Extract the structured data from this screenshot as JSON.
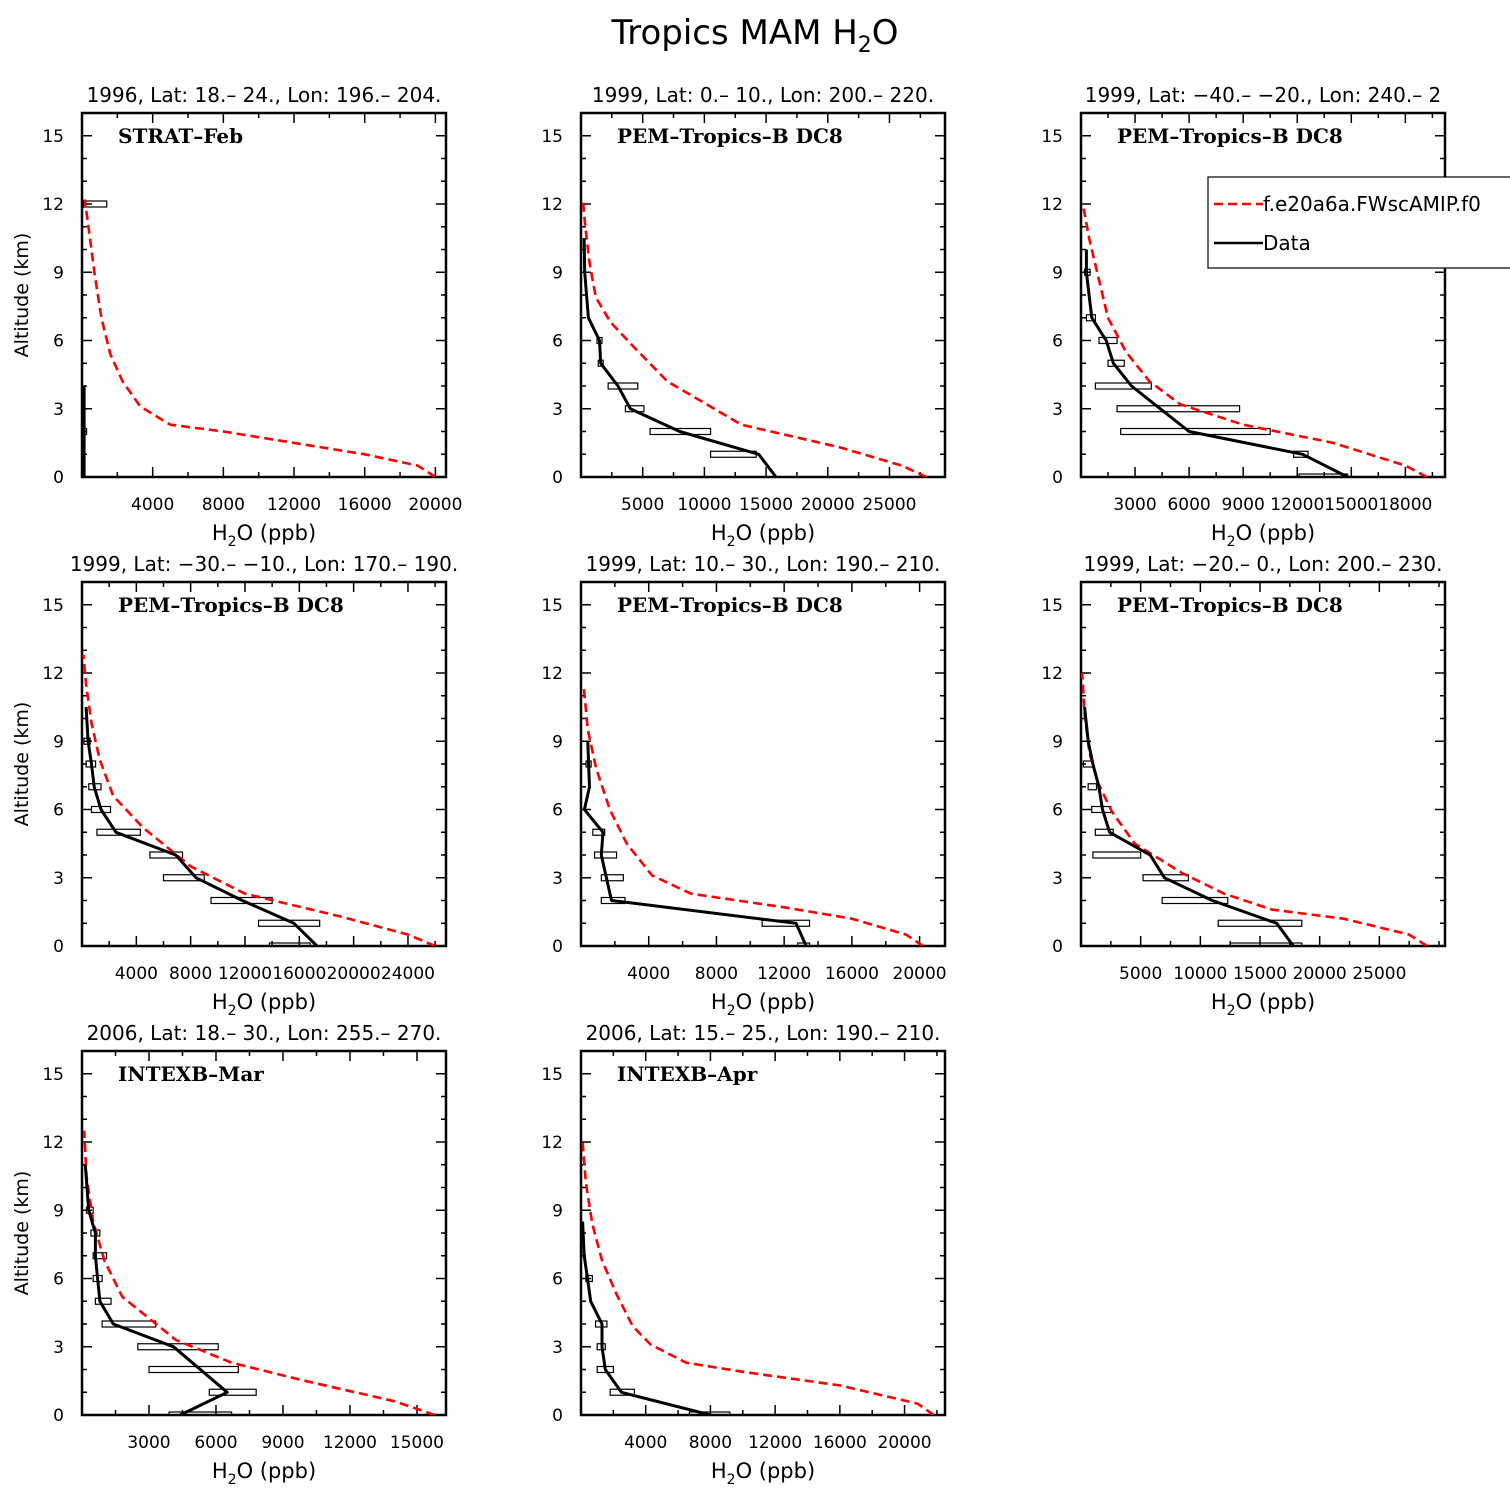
{
  "figure": {
    "title": "Tropics MAM H",
    "title_sub": "2",
    "title_tail": "O"
  },
  "legend": {
    "placement": "top-right of panel 3",
    "entries": [
      {
        "label": "f.e20a6a.FWscAMIP.f0",
        "style": "dashed",
        "color": "#ff0000"
      },
      {
        "label": "Data",
        "style": "solid",
        "color": "#000000"
      }
    ]
  },
  "colors": {
    "model": "#ff0000",
    "data": "#000000",
    "frame": "#000000"
  },
  "chart_data": [
    {
      "type": "line",
      "subtitle": "1996, Lat: 18.– 24., Lon: 196.– 204.",
      "campaign": "STRAT–Feb",
      "ylabel": "Altitude (km)",
      "xlabel_main": "H",
      "xlabel_sub": "2",
      "xlabel_tail": "O (ppb)",
      "xlim": [
        0,
        20600
      ],
      "ylim": [
        0,
        16
      ],
      "xticks": [
        4000,
        8000,
        12000,
        16000,
        20000
      ],
      "xtick_labels": [
        "4000",
        "8000",
        "12000",
        "16000",
        "20000"
      ],
      "yticks": [
        0,
        3,
        6,
        9,
        12,
        15
      ],
      "ytick_labels": [
        "0",
        "3",
        "6",
        "9",
        "12",
        "15"
      ],
      "series": [
        {
          "name": "f.e20a6a.FWscAMIP.f0",
          "x": [
            20000,
            19000,
            16000,
            12000,
            8000,
            5000,
            3300,
            2300,
            1600,
            1100,
            700,
            450,
            280,
            150
          ],
          "y": [
            0,
            0.5,
            1,
            1.5,
            2,
            2.3,
            3.1,
            4.2,
            5.4,
            7,
            9,
            10.5,
            11.5,
            12.2
          ]
        },
        {
          "name": "Data",
          "x": [
            120,
            120,
            120,
            120
          ],
          "y": [
            0,
            2,
            3,
            4
          ]
        }
      ],
      "ranges": [
        {
          "y": 12,
          "min": 80,
          "max": 1400
        },
        {
          "y": 2,
          "min": 60,
          "max": 260
        }
      ]
    },
    {
      "type": "line",
      "subtitle": "1999, Lat: 0.– 10., Lon: 200.– 220.",
      "campaign": "PEM–Tropics–B DC8",
      "ylabel": "",
      "xlabel_main": "H",
      "xlabel_sub": "2",
      "xlabel_tail": "O (ppb)",
      "xlim": [
        0,
        29500
      ],
      "ylim": [
        0,
        16
      ],
      "xticks": [
        5000,
        10000,
        15000,
        20000,
        25000
      ],
      "xtick_labels": [
        "5000",
        "10000",
        "15000",
        "20000",
        "25000"
      ],
      "yticks": [
        0,
        3,
        6,
        9,
        12,
        15
      ],
      "ytick_labels": [
        "0",
        "3",
        "6",
        "9",
        "12",
        "15"
      ],
      "series": [
        {
          "name": "f.e20a6a.FWscAMIP.f0",
          "x": [
            28000,
            26000,
            21000,
            13000,
            7000,
            4300,
            2400,
            1200,
            700,
            350,
            150
          ],
          "y": [
            0,
            0.5,
            1.3,
            2.3,
            4.2,
            5.7,
            6.8,
            7.9,
            9.4,
            11,
            12.2
          ]
        },
        {
          "name": "Data",
          "x": [
            15800,
            14400,
            8000,
            4000,
            3000,
            1600,
            1500,
            600,
            300,
            250
          ],
          "y": [
            0,
            1,
            2,
            3,
            4,
            5,
            6,
            7,
            9,
            10.5
          ]
        }
      ],
      "ranges": [
        {
          "y": 1,
          "min": 10500,
          "max": 14200
        },
        {
          "y": 2,
          "min": 5600,
          "max": 10500
        },
        {
          "y": 3,
          "min": 3600,
          "max": 5100
        },
        {
          "y": 4,
          "min": 2200,
          "max": 4600
        },
        {
          "y": 5,
          "min": 1400,
          "max": 1800
        },
        {
          "y": 6,
          "min": 1300,
          "max": 1700
        }
      ]
    },
    {
      "type": "line",
      "subtitle": "1999, Lat: −40.– −20., Lon: 240.– 2",
      "campaign": "PEM–Tropics–B DC8",
      "ylabel": "",
      "xlabel_main": "H",
      "xlabel_sub": "2",
      "xlabel_tail": "O (ppb)",
      "xlim": [
        0,
        20200
      ],
      "ylim": [
        0,
        16
      ],
      "xticks": [
        3000,
        6000,
        9000,
        12000,
        15000,
        18000
      ],
      "xtick_labels": [
        "3000",
        "6000",
        "9000",
        "12000",
        "15000",
        "18000"
      ],
      "yticks": [
        0,
        3,
        6,
        9,
        12,
        15
      ],
      "ytick_labels": [
        "0",
        "3",
        "6",
        "9",
        "12",
        "15"
      ],
      "series": [
        {
          "name": "f.e20a6a.FWscAMIP.f0",
          "x": [
            19200,
            18000,
            14000,
            9000,
            5500,
            3800,
            2500,
            1500,
            900,
            450,
            150
          ],
          "y": [
            0,
            0.5,
            1.5,
            2.3,
            3.2,
            4.2,
            5.5,
            7,
            9,
            10.5,
            11.8
          ]
        },
        {
          "name": "Data",
          "x": [
            14800,
            12300,
            6000,
            4400,
            2800,
            1800,
            1400,
            600,
            300,
            300
          ],
          "y": [
            0,
            1,
            2,
            3,
            4,
            5,
            6,
            7,
            9,
            10
          ]
        }
      ],
      "ranges": [
        {
          "y": 0,
          "min": 12100,
          "max": 14800
        },
        {
          "y": 1,
          "min": 11800,
          "max": 12600
        },
        {
          "y": 2,
          "min": 2200,
          "max": 10500
        },
        {
          "y": 3,
          "min": 2000,
          "max": 8800
        },
        {
          "y": 4,
          "min": 800,
          "max": 3900
        },
        {
          "y": 5,
          "min": 1500,
          "max": 2400
        },
        {
          "y": 6,
          "min": 1000,
          "max": 2000
        },
        {
          "y": 7,
          "min": 300,
          "max": 800
        },
        {
          "y": 9,
          "min": 200,
          "max": 500
        }
      ]
    },
    {
      "type": "line",
      "subtitle": "1999, Lat: −30.– −10., Lon: 170.– 190.",
      "campaign": "PEM–Tropics–B DC8",
      "ylabel": "Altitude (km)",
      "xlabel_main": "H",
      "xlabel_sub": "2",
      "xlabel_tail": "O (ppb)",
      "xlim": [
        0,
        26800
      ],
      "ylim": [
        0,
        16
      ],
      "xticks": [
        4000,
        8000,
        12000,
        16000,
        20000,
        24000
      ],
      "xtick_labels": [
        "4000",
        "8000",
        "12000",
        "16000",
        "20000",
        "24000"
      ],
      "yticks": [
        0,
        3,
        6,
        9,
        12,
        15
      ],
      "ytick_labels": [
        "0",
        "3",
        "6",
        "9",
        "12",
        "15"
      ],
      "series": [
        {
          "name": "f.e20a6a.FWscAMIP.f0",
          "x": [
            26000,
            24000,
            19000,
            12000,
            8000,
            4500,
            2300,
            1300,
            700,
            300,
            100
          ],
          "y": [
            0,
            0.5,
            1.3,
            2.3,
            3.5,
            5.2,
            6.6,
            8.2,
            9.8,
            11.5,
            12.8
          ]
        },
        {
          "name": "Data",
          "x": [
            17300,
            15600,
            11800,
            8400,
            6900,
            2500,
            1400,
            900,
            700,
            450,
            300
          ],
          "y": [
            0,
            1,
            2,
            3,
            4,
            5,
            6,
            7,
            8,
            9,
            10.5
          ]
        }
      ],
      "ranges": [
        {
          "y": 0,
          "min": 13800,
          "max": 16800
        },
        {
          "y": 1,
          "min": 13000,
          "max": 17500
        },
        {
          "y": 2,
          "min": 9500,
          "max": 14000
        },
        {
          "y": 3,
          "min": 6000,
          "max": 9000
        },
        {
          "y": 4,
          "min": 5000,
          "max": 7400
        },
        {
          "y": 5,
          "min": 1100,
          "max": 4300
        },
        {
          "y": 6,
          "min": 700,
          "max": 2100
        },
        {
          "y": 7,
          "min": 500,
          "max": 1400
        },
        {
          "y": 8,
          "min": 300,
          "max": 1000
        },
        {
          "y": 9,
          "min": 150,
          "max": 600
        }
      ]
    },
    {
      "type": "line",
      "subtitle": "1999, Lat: 10.– 30., Lon: 190.– 210.",
      "campaign": "PEM–Tropics–B DC8",
      "ylabel": "",
      "xlabel_main": "H",
      "xlabel_sub": "2",
      "xlabel_tail": "O (ppb)",
      "xlim": [
        0,
        21500
      ],
      "ylim": [
        0,
        16
      ],
      "xticks": [
        4000,
        8000,
        12000,
        16000,
        20000
      ],
      "xtick_labels": [
        "4000",
        "8000",
        "12000",
        "16000",
        "20000"
      ],
      "yticks": [
        0,
        3,
        6,
        9,
        12,
        15
      ],
      "ytick_labels": [
        "0",
        "3",
        "6",
        "9",
        "12",
        "15"
      ],
      "series": [
        {
          "name": "f.e20a6a.FWscAMIP.f0",
          "x": [
            20200,
            19200,
            16000,
            12000,
            6500,
            4200,
            2700,
            1700,
            900,
            400,
            150
          ],
          "y": [
            0,
            0.5,
            1.2,
            1.7,
            2.3,
            3.1,
            4.5,
            6,
            7.8,
            9.5,
            11.5
          ]
        },
        {
          "name": "Data",
          "x": [
            13300,
            12700,
            1800,
            1500,
            1200,
            1300,
            200,
            500,
            450,
            400
          ],
          "y": [
            0,
            1,
            2,
            3,
            4,
            5,
            6,
            7,
            8,
            9
          ]
        }
      ],
      "ranges": [
        {
          "y": 0,
          "min": 12800,
          "max": 13500
        },
        {
          "y": 1,
          "min": 10700,
          "max": 13500
        },
        {
          "y": 2,
          "min": 1200,
          "max": 2600
        },
        {
          "y": 3,
          "min": 1200,
          "max": 2500
        },
        {
          "y": 4,
          "min": 800,
          "max": 2100
        },
        {
          "y": 5,
          "min": 700,
          "max": 1400
        },
        {
          "y": 8,
          "min": 300,
          "max": 600
        }
      ]
    },
    {
      "type": "line",
      "subtitle": "1999, Lat: −20.– 0., Lon: 200.– 230.",
      "campaign": "PEM–Tropics–B DC8",
      "ylabel": "",
      "xlabel_main": "H",
      "xlabel_sub": "2",
      "xlabel_tail": "O (ppb)",
      "xlim": [
        0,
        30500
      ],
      "ylim": [
        0,
        16
      ],
      "xticks": [
        5000,
        10000,
        15000,
        20000,
        25000
      ],
      "xtick_labels": [
        "5000",
        "10000",
        "15000",
        "20000",
        "25000"
      ],
      "yticks": [
        0,
        3,
        6,
        9,
        12,
        15
      ],
      "ytick_labels": [
        "0",
        "3",
        "6",
        "9",
        "12",
        "15"
      ],
      "series": [
        {
          "name": "f.e20a6a.FWscAMIP.f0",
          "x": [
            29000,
            27500,
            22000,
            16000,
            12000,
            8500,
            4500,
            2600,
            1400,
            700,
            300,
            100
          ],
          "y": [
            0,
            0.5,
            1.2,
            1.6,
            2.3,
            3.2,
            4.5,
            5.9,
            7.2,
            8.5,
            10.2,
            12
          ]
        },
        {
          "name": "Data",
          "x": [
            17800,
            16400,
            11000,
            7000,
            5800,
            2400,
            1800,
            1500,
            1000,
            600,
            300
          ],
          "y": [
            0,
            1,
            2,
            3,
            4,
            5,
            6,
            7,
            8,
            9,
            10.5
          ]
        }
      ],
      "ranges": [
        {
          "y": 0,
          "min": 12500,
          "max": 18500
        },
        {
          "y": 1,
          "min": 11500,
          "max": 18500
        },
        {
          "y": 2,
          "min": 6800,
          "max": 12300
        },
        {
          "y": 3,
          "min": 5200,
          "max": 9000
        },
        {
          "y": 4,
          "min": 1000,
          "max": 5000
        },
        {
          "y": 5,
          "min": 1200,
          "max": 2700
        },
        {
          "y": 6,
          "min": 900,
          "max": 2500
        },
        {
          "y": 7,
          "min": 600,
          "max": 1300
        },
        {
          "y": 8,
          "min": 200,
          "max": 1000
        }
      ]
    },
    {
      "type": "line",
      "subtitle": "2006, Lat: 18.– 30., Lon: 255.– 270.",
      "campaign": "INTEXB–Mar",
      "ylabel": "Altitude (km)",
      "xlabel_main": "H",
      "xlabel_sub": "2",
      "xlabel_tail": "O (ppb)",
      "xlim": [
        0,
        16300
      ],
      "ylim": [
        0,
        16
      ],
      "xticks": [
        3000,
        6000,
        9000,
        12000,
        15000
      ],
      "xtick_labels": [
        "3000",
        "6000",
        "9000",
        "12000",
        "15000"
      ],
      "yticks": [
        0,
        3,
        6,
        9,
        12,
        15
      ],
      "ytick_labels": [
        "0",
        "3",
        "6",
        "9",
        "12",
        "15"
      ],
      "series": [
        {
          "name": "f.e20a6a.FWscAMIP.f0",
          "x": [
            15800,
            14000,
            10000,
            6700,
            4200,
            1800,
            1000,
            500,
            200,
            100
          ],
          "y": [
            0,
            0.6,
            1.5,
            2.3,
            3.3,
            5.2,
            6.8,
            8.5,
            10.5,
            12.5
          ]
        },
        {
          "name": "Data",
          "x": [
            4400,
            6500,
            4100,
            1400,
            800,
            700,
            600,
            600,
            300,
            150
          ],
          "y": [
            0,
            1,
            3,
            4,
            5,
            6,
            7,
            8,
            9,
            11
          ]
        }
      ],
      "ranges": [
        {
          "y": 0,
          "min": 3900,
          "max": 6700
        },
        {
          "y": 1,
          "min": 5700,
          "max": 7800
        },
        {
          "y": 2,
          "min": 3000,
          "max": 7000
        },
        {
          "y": 3,
          "min": 2500,
          "max": 6100
        },
        {
          "y": 4,
          "min": 900,
          "max": 3300
        },
        {
          "y": 5,
          "min": 600,
          "max": 1300
        },
        {
          "y": 6,
          "min": 500,
          "max": 900
        },
        {
          "y": 7,
          "min": 500,
          "max": 1100
        },
        {
          "y": 8,
          "min": 400,
          "max": 800
        },
        {
          "y": 9,
          "min": 200,
          "max": 500
        }
      ]
    },
    {
      "type": "line",
      "subtitle": "2006, Lat: 15.– 25., Lon: 190.– 210.",
      "campaign": "INTEXB–Apr",
      "ylabel": "",
      "xlabel_main": "H",
      "xlabel_sub": "2",
      "xlabel_tail": "O (ppb)",
      "xlim": [
        0,
        22500
      ],
      "ylim": [
        0,
        16
      ],
      "xticks": [
        4000,
        8000,
        12000,
        16000,
        20000
      ],
      "xtick_labels": [
        "4000",
        "8000",
        "12000",
        "16000",
        "20000"
      ],
      "yticks": [
        0,
        3,
        6,
        9,
        12,
        15
      ],
      "ytick_labels": [
        "0",
        "3",
        "6",
        "9",
        "12",
        "15"
      ],
      "series": [
        {
          "name": "f.e20a6a.FWscAMIP.f0",
          "x": [
            21800,
            20800,
            16000,
            10000,
            6500,
            4300,
            3200,
            2200,
            1300,
            700,
            300,
            100
          ],
          "y": [
            0,
            0.5,
            1.3,
            1.9,
            2.3,
            3.1,
            3.9,
            5.3,
            6.8,
            8.4,
            10.2,
            12
          ]
        },
        {
          "name": "Data",
          "x": [
            8000,
            2500,
            1500,
            1300,
            1300,
            600,
            400,
            200,
            100
          ],
          "y": [
            0,
            1,
            2,
            3,
            4,
            5,
            6,
            7,
            8.5
          ]
        }
      ],
      "ranges": [
        {
          "y": 0,
          "min": 6700,
          "max": 9200
        },
        {
          "y": 1,
          "min": 1800,
          "max": 3300
        },
        {
          "y": 2,
          "min": 1000,
          "max": 2000
        },
        {
          "y": 3,
          "min": 1000,
          "max": 1500
        },
        {
          "y": 4,
          "min": 900,
          "max": 1600
        },
        {
          "y": 6,
          "min": 300,
          "max": 700
        }
      ]
    }
  ]
}
